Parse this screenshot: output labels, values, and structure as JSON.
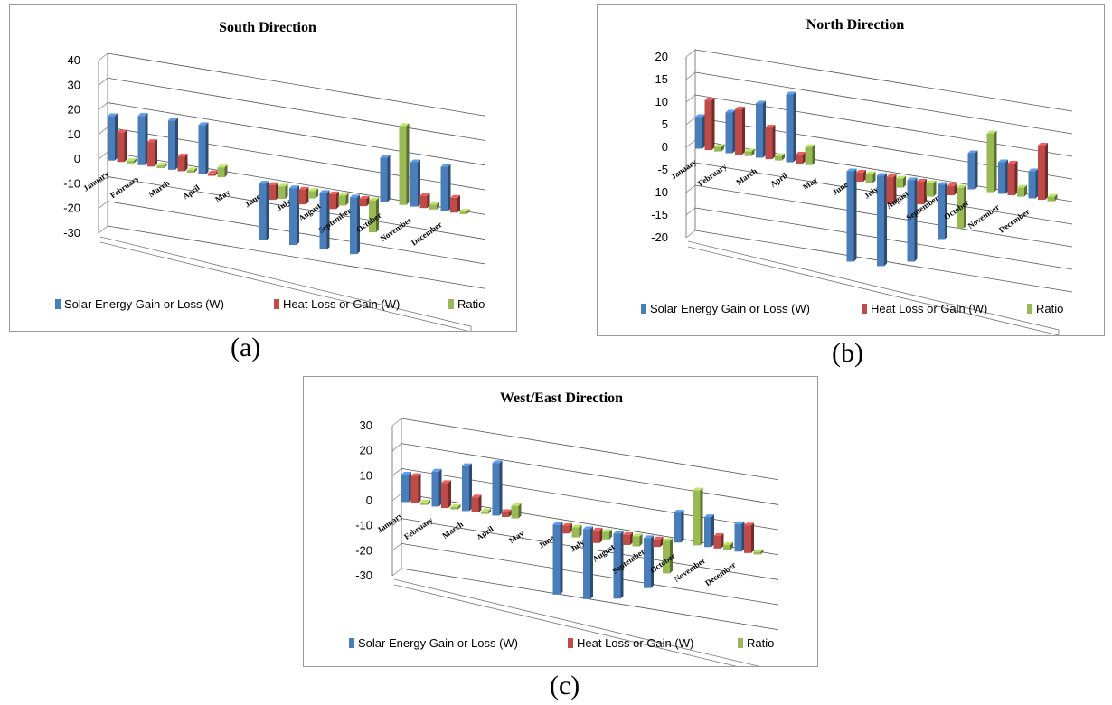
{
  "figure_labels": [
    "(a)",
    "(b)",
    "(c)"
  ],
  "colors": {
    "solar": "#4a7ebb",
    "heat": "#be4b48",
    "ratio": "#98b954"
  },
  "chart_data": [
    {
      "type": "bar",
      "title": "South Direction",
      "categories": [
        "January",
        "February",
        "March",
        "April",
        "May",
        "June",
        "July",
        "August",
        "September",
        "October",
        "November",
        "December"
      ],
      "ylim": [
        -30,
        40
      ],
      "yticks": [
        "40",
        "30",
        "20",
        "10",
        "0",
        "-10",
        "-20",
        "-30"
      ],
      "grid": true,
      "legend_position": "bottom",
      "series": [
        {
          "name": "Solar Energy Gain or Loss (W)",
          "values": [
            18,
            20,
            20,
            20,
            0,
            -23,
            -23,
            -23,
            -23,
            18,
            18,
            18
          ]
        },
        {
          "name": "Heat Loss or Gain (W)",
          "values": [
            12,
            10,
            6,
            1,
            0,
            -6,
            -6,
            -6,
            -3,
            0,
            5,
            6
          ]
        },
        {
          "name": "Ratio",
          "values": [
            1,
            1,
            1,
            4,
            0,
            -5,
            -3,
            -4,
            -13,
            32,
            2,
            1
          ]
        }
      ]
    },
    {
      "type": "bar",
      "title": "North Direction",
      "categories": [
        "January",
        "February",
        "March",
        "April",
        "May",
        "June",
        "July",
        "August",
        "September",
        "October",
        "November",
        "December"
      ],
      "ylim": [
        -20,
        20
      ],
      "yticks": [
        "20",
        "15",
        "10",
        "5",
        "0",
        "-5",
        "-10",
        "-15",
        "-20"
      ],
      "grid": true,
      "legend_position": "bottom",
      "series": [
        {
          "name": "Solar Energy Gain or Loss (W)",
          "values": [
            7,
            9,
            12,
            15,
            0,
            -20,
            -20,
            -18,
            -12,
            8,
            7,
            6
          ]
        },
        {
          "name": "Heat Loss or Gain (W)",
          "values": [
            11,
            10,
            7,
            2,
            0,
            -2,
            -6,
            -5,
            -2,
            0,
            7,
            12
          ]
        },
        {
          "name": "Ratio",
          "values": [
            1,
            1,
            1,
            4,
            0,
            -2,
            -2,
            -3,
            -9,
            13,
            2,
            1
          ]
        }
      ]
    },
    {
      "type": "bar",
      "title": "West/East Direction",
      "categories": [
        "January",
        "February",
        "March",
        "April",
        "May",
        "June",
        "July",
        "August",
        "September",
        "October",
        "November",
        "December"
      ],
      "ylim": [
        -30,
        30
      ],
      "yticks": [
        "30",
        "20",
        "10",
        "0",
        "-10",
        "-20",
        "-30"
      ],
      "grid": true,
      "legend_position": "bottom",
      "series": [
        {
          "name": "Solar Energy Gain or Loss  (W)",
          "values": [
            11,
            14,
            18,
            21,
            0,
            -28,
            -28,
            -26,
            -20,
            12,
            12,
            11
          ]
        },
        {
          "name": "Heat Loss or Gain  (W)",
          "values": [
            11,
            10,
            6,
            2,
            0,
            -3,
            -5,
            -4,
            -3,
            0,
            5,
            11
          ]
        },
        {
          "name": "Ratio",
          "values": [
            1,
            1,
            1,
            5,
            0,
            -4,
            -3,
            -4,
            -13,
            22,
            2,
            1
          ]
        }
      ]
    }
  ]
}
